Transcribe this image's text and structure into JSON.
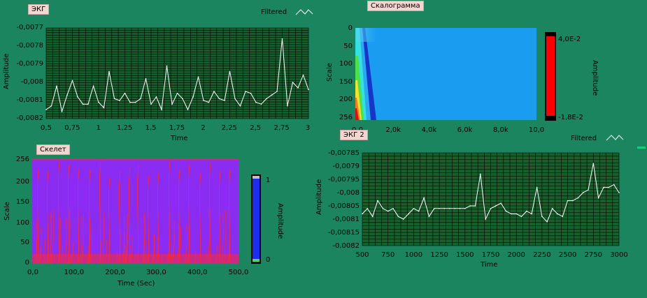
{
  "colors": {
    "background": "#1b8560",
    "plot_bg": "#17602c",
    "grid": "#000000",
    "trace": "#ffffff",
    "label_bg": "#f3d6d0",
    "skeleton_bg": "#8a2cf2",
    "skeleton_line": "#ff2a2a",
    "scalogram_bg": "#1a9cf0",
    "colorbar_red": "#ff0000",
    "colorbar_blue": "#1f2cf0"
  },
  "ekg": {
    "title": "ЭКГ",
    "legend": "Filtered",
    "ylabel": "Amplitude",
    "xlabel": "Time",
    "yticks": [
      "-0,0077",
      "-0,0078",
      "-0,0079",
      "-0,008",
      "-0,0081",
      "-0,0082"
    ],
    "xticks": [
      "0,5",
      "0,75",
      "1",
      "1,25",
      "1,5",
      "1,75",
      "2",
      "2,25",
      "2,5",
      "2,75",
      "3"
    ]
  },
  "scalogram": {
    "title": "Скалограмма",
    "ylabel": "Scale",
    "colorbar_label": "Amplitude",
    "colorbar_top": "4,0E-2",
    "colorbar_bottom": "-1,8E-2",
    "yticks": [
      "0",
      "50",
      "100",
      "150",
      "200",
      "256"
    ],
    "xticks": [
      "0,0",
      "2,0k",
      "4,0k",
      "6,0k",
      "8,0k",
      "10,0"
    ]
  },
  "skeleton": {
    "title": "Скелет",
    "ylabel": "Scale",
    "xlabel": "Time (Sec)",
    "colorbar_label": "Amplitude",
    "colorbar_top": "1",
    "colorbar_bottom": "0",
    "yticks": [
      "256",
      "200",
      "150",
      "100",
      "50",
      "0"
    ],
    "xticks": [
      "0,0",
      "100,0",
      "200,0",
      "300,0",
      "400,0",
      "500,0"
    ]
  },
  "ekg2": {
    "title": "ЭКГ 2",
    "legend": "Filtered",
    "ylabel": "Amplitude",
    "xlabel": "Time",
    "yticks": [
      "-0,00785",
      "-0,0079",
      "-0,00795",
      "-0,008",
      "-0,00805",
      "-0,0081",
      "-0,00815",
      "-0,0082"
    ],
    "xticks": [
      "500",
      "750",
      "1000",
      "1250",
      "1500",
      "1750",
      "2000",
      "2250",
      "2500",
      "2750",
      "3000"
    ]
  },
  "chart_data": [
    {
      "type": "line",
      "title": "ЭКГ",
      "xlabel": "Time",
      "ylabel": "Amplitude",
      "xlim": [
        0.5,
        3
      ],
      "ylim": [
        -0.0082,
        -0.0077
      ],
      "series": [
        {
          "name": "Filtered",
          "x": [
            0.5,
            0.55,
            0.6,
            0.65,
            0.7,
            0.75,
            0.8,
            0.85,
            0.9,
            0.95,
            1.0,
            1.05,
            1.1,
            1.15,
            1.2,
            1.25,
            1.3,
            1.35,
            1.4,
            1.45,
            1.5,
            1.55,
            1.6,
            1.65,
            1.7,
            1.75,
            1.8,
            1.85,
            1.9,
            1.95,
            2.0,
            2.05,
            2.1,
            2.15,
            2.2,
            2.25,
            2.3,
            2.35,
            2.4,
            2.45,
            2.5,
            2.55,
            2.6,
            2.65,
            2.7,
            2.75,
            2.8,
            2.85,
            2.9,
            2.95,
            3.0
          ],
          "y": [
            -0.00815,
            -0.00813,
            -0.00802,
            -0.00816,
            -0.00807,
            -0.00799,
            -0.00808,
            -0.00812,
            -0.00812,
            -0.00802,
            -0.00811,
            -0.00814,
            -0.00794,
            -0.00809,
            -0.0081,
            -0.00806,
            -0.00811,
            -0.00811,
            -0.00809,
            -0.00798,
            -0.00812,
            -0.00808,
            -0.00815,
            -0.00791,
            -0.00812,
            -0.00806,
            -0.00809,
            -0.00815,
            -0.00808,
            -0.00797,
            -0.0081,
            -0.00811,
            -0.00805,
            -0.00809,
            -0.0081,
            -0.00794,
            -0.00809,
            -0.00813,
            -0.00805,
            -0.00806,
            -0.00811,
            -0.00812,
            -0.00809,
            -0.00807,
            -0.00805,
            -0.00776,
            -0.00813,
            -0.008,
            -0.00803,
            -0.00796,
            -0.00804
          ]
        }
      ]
    },
    {
      "type": "heatmap",
      "title": "Скалограмма",
      "ylabel": "Scale",
      "xticks": [
        "0,0",
        "2,0k",
        "4,0k",
        "6,0k",
        "8,0k",
        "10,0"
      ],
      "ylim": [
        256,
        0
      ],
      "colorbar": {
        "label": "Amplitude",
        "min": -0.018,
        "max": 0.04
      }
    },
    {
      "type": "heatmap",
      "title": "Скелет",
      "xlabel": "Time (Sec)",
      "ylabel": "Scale",
      "xlim": [
        0,
        500
      ],
      "ylim": [
        0,
        256
      ],
      "colorbar": {
        "label": "Amplitude",
        "min": 0,
        "max": 1
      }
    },
    {
      "type": "line",
      "title": "ЭКГ 2",
      "xlabel": "Time",
      "ylabel": "Amplitude",
      "xlim": [
        500,
        3000
      ],
      "ylim": [
        -0.0082,
        -0.00785
      ],
      "series": [
        {
          "name": "Filtered",
          "x": [
            500,
            550,
            600,
            650,
            700,
            750,
            800,
            850,
            900,
            950,
            1000,
            1050,
            1100,
            1150,
            1200,
            1250,
            1300,
            1350,
            1400,
            1450,
            1500,
            1550,
            1600,
            1650,
            1700,
            1750,
            1800,
            1850,
            1900,
            1950,
            2000,
            2050,
            2100,
            2150,
            2200,
            2250,
            2300,
            2350,
            2400,
            2450,
            2500,
            2550,
            2600,
            2650,
            2700,
            2750,
            2800,
            2850,
            2900,
            2950,
            3000
          ],
          "y": [
            -0.00808,
            -0.00806,
            -0.00809,
            -0.00803,
            -0.00806,
            -0.00807,
            -0.00806,
            -0.00809,
            -0.0081,
            -0.00808,
            -0.00806,
            -0.00807,
            -0.00802,
            -0.00809,
            -0.00806,
            -0.00806,
            -0.00806,
            -0.00806,
            -0.00806,
            -0.00806,
            -0.00806,
            -0.00805,
            -0.00805,
            -0.00793,
            -0.0081,
            -0.00806,
            -0.00805,
            -0.00804,
            -0.00807,
            -0.00808,
            -0.00808,
            -0.00809,
            -0.00807,
            -0.00808,
            -0.00798,
            -0.00809,
            -0.00811,
            -0.00806,
            -0.00808,
            -0.00809,
            -0.00803,
            -0.00803,
            -0.00802,
            -0.008,
            -0.00799,
            -0.00789,
            -0.00802,
            -0.00798,
            -0.00798,
            -0.00797,
            -0.008
          ]
        }
      ]
    }
  ]
}
